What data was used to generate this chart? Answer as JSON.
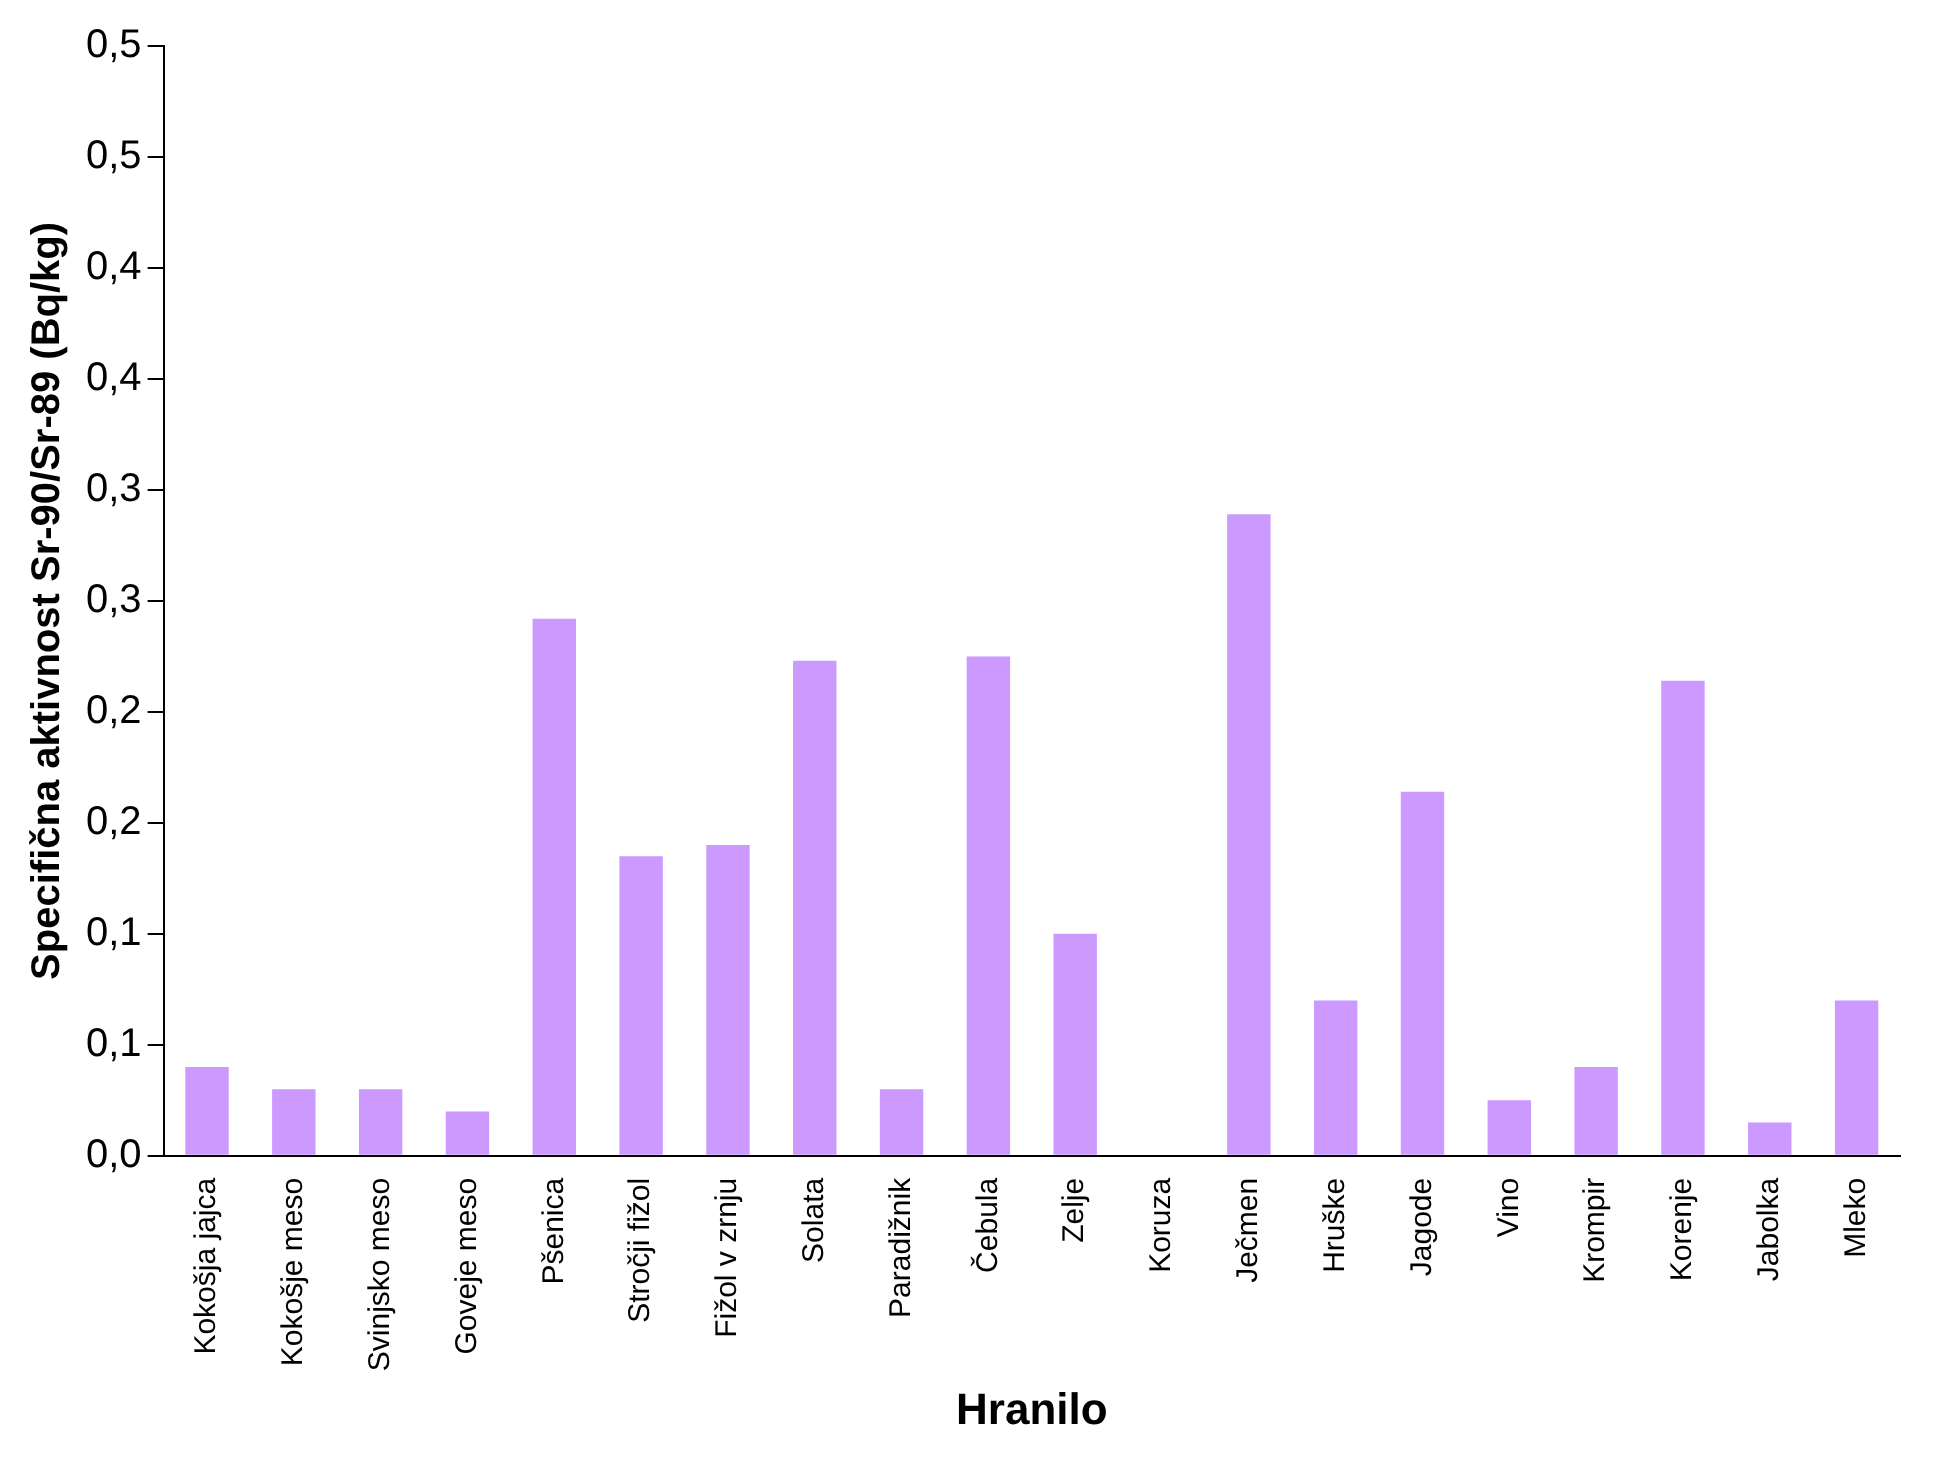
{
  "chart_data": {
    "type": "bar",
    "xlabel": "Hranilo",
    "ylabel": "Specifična aktivnost Sr-90/Sr-89 (Bq/kg)",
    "categories": [
      "Kokošja jajca",
      "Kokošje meso",
      "Svinjsko meso",
      "Goveje meso",
      "Pšenica",
      "Stročji fižol",
      "Fižol v zrnju",
      "Solata",
      "Paradižnik",
      "Čebula",
      "Zelje",
      "Koruza",
      "Ječmen",
      "Hruške",
      "Jagode",
      "Vino",
      "Krompir",
      "Korenje",
      "Jabolka",
      "Mleko"
    ],
    "values": [
      0.04,
      0.03,
      0.03,
      0.02,
      0.242,
      0.135,
      0.14,
      0.223,
      0.03,
      0.225,
      0.1,
      0,
      0.289,
      0.07,
      0.164,
      0.025,
      0.04,
      0.214,
      0.015,
      0.07
    ],
    "color": "#cc99ff",
    "ylim": [
      0,
      0.5
    ],
    "yticks": [
      {
        "value": 0,
        "label": "0,0"
      },
      {
        "value": 0.05,
        "label": "0,1"
      },
      {
        "value": 0.1,
        "label": "0,1"
      },
      {
        "value": 0.15,
        "label": "0,2"
      },
      {
        "value": 0.2,
        "label": "0,2"
      },
      {
        "value": 0.25,
        "label": "0,3"
      },
      {
        "value": 0.3,
        "label": "0,3"
      },
      {
        "value": 0.35,
        "label": "0,4"
      },
      {
        "value": 0.4,
        "label": "0,4"
      },
      {
        "value": 0.45,
        "label": "0,5"
      },
      {
        "value": 0.5,
        "label": "0,5"
      }
    ],
    "grid": false,
    "legend": false
  }
}
